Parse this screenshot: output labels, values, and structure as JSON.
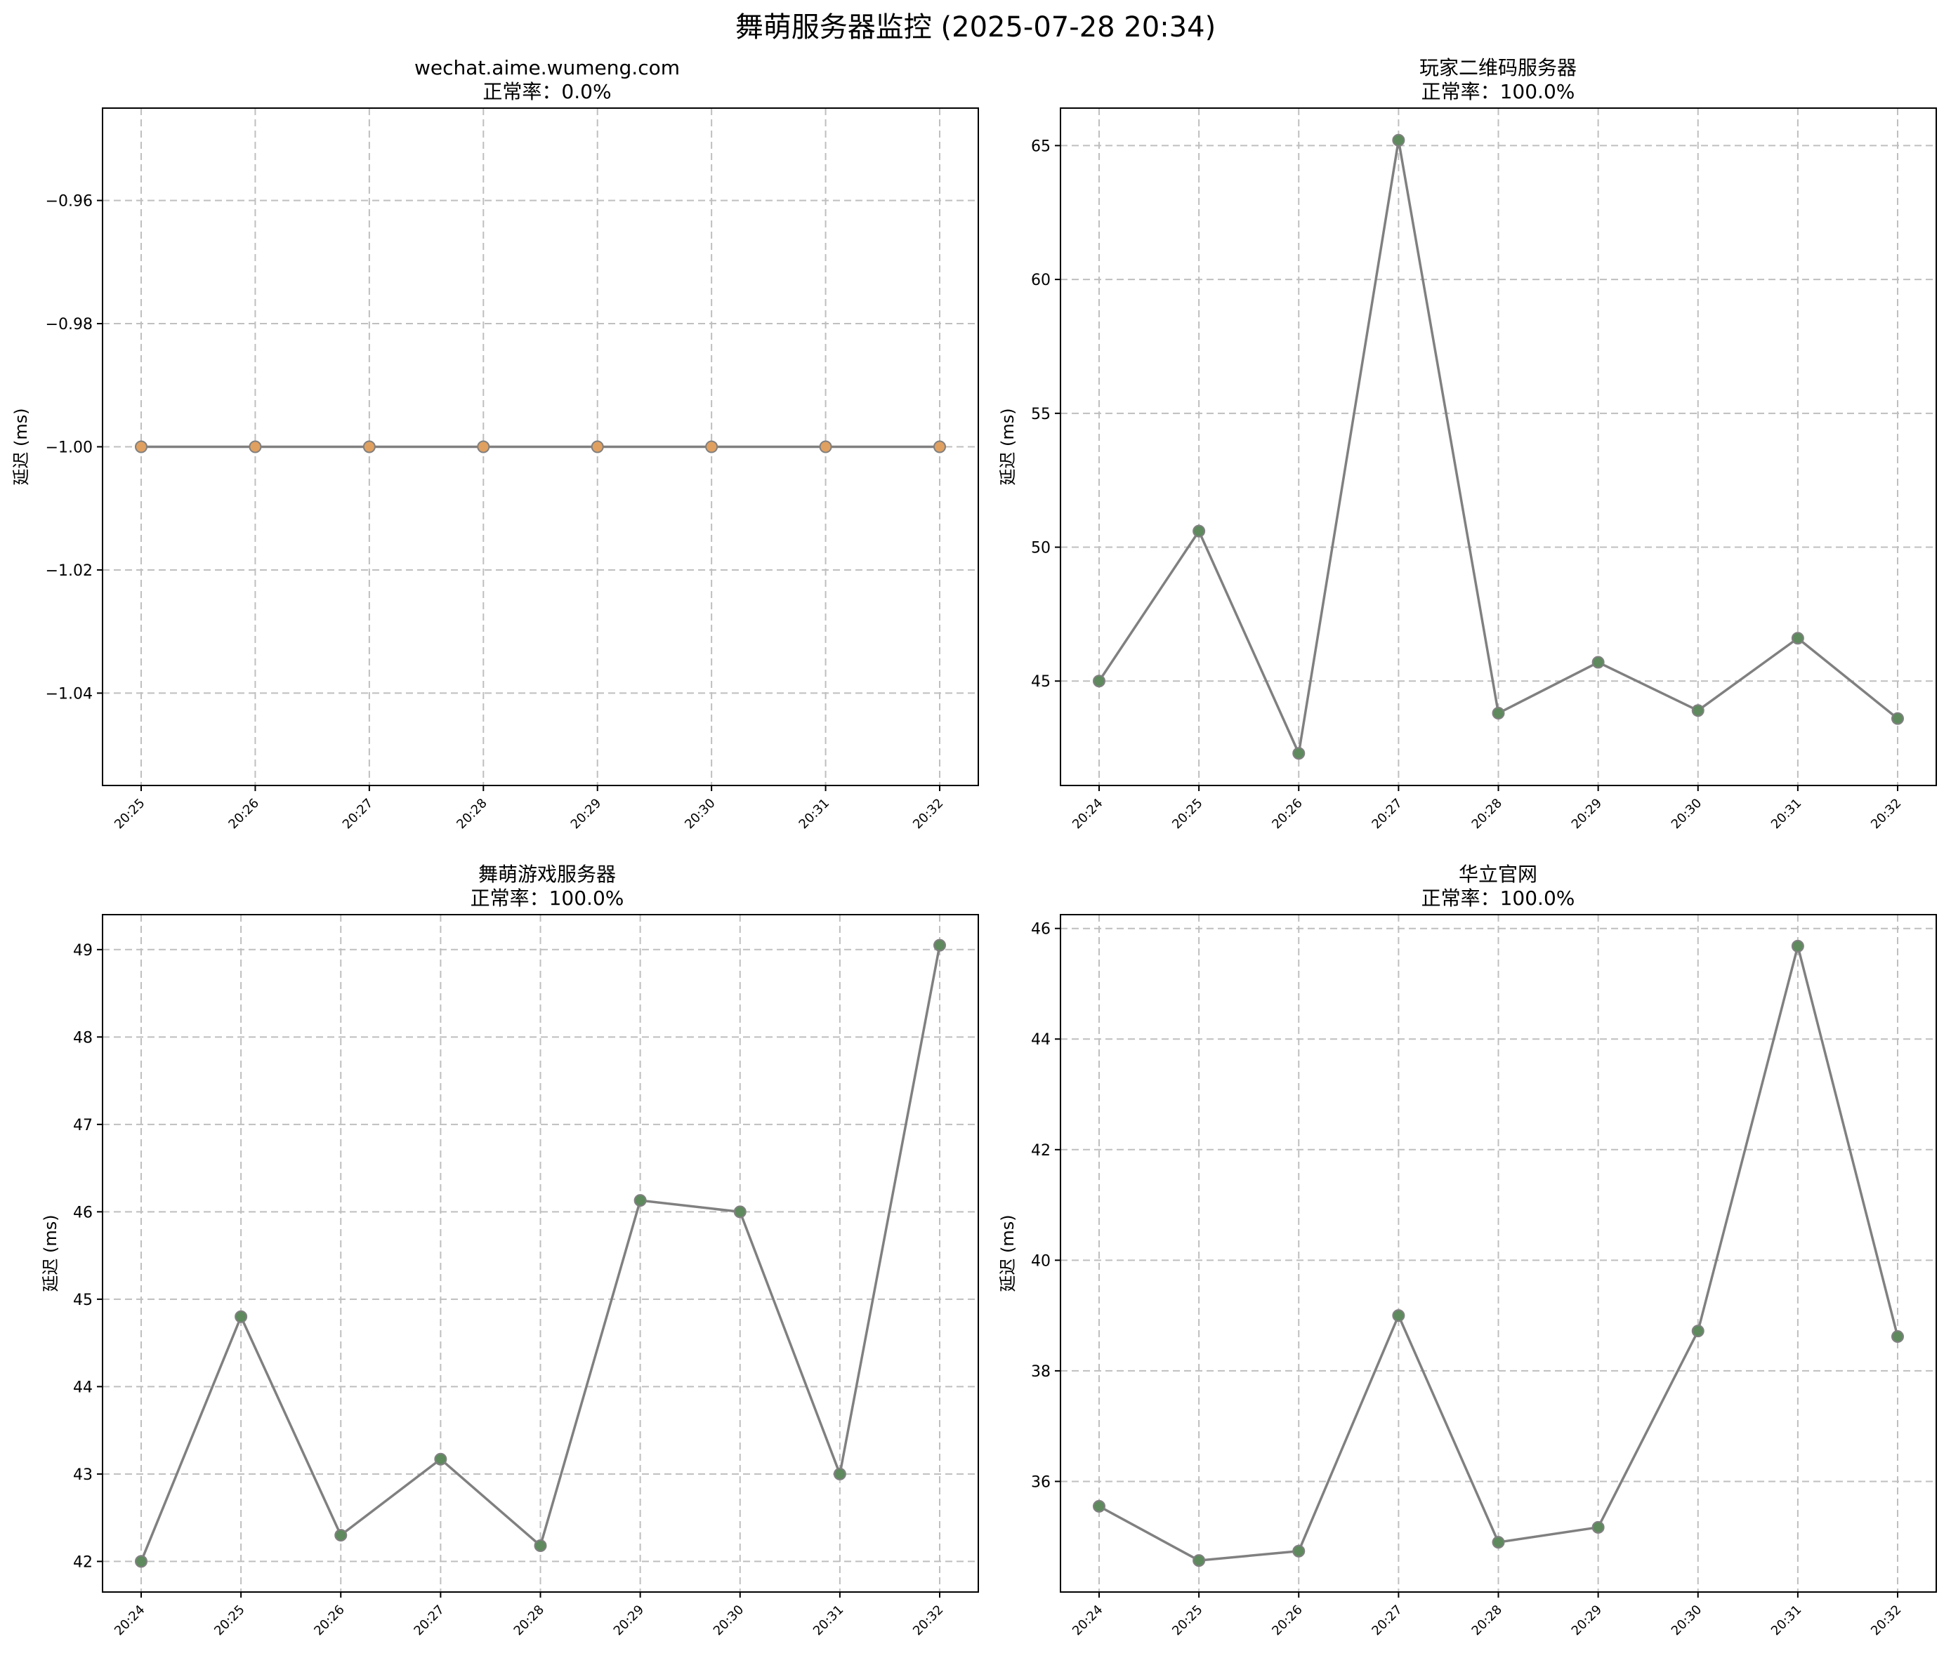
{
  "suptitle": "舞萌服务器监控 (2025-07-28 20:34)",
  "chart_data": [
    {
      "type": "line",
      "title": "wechat.aime.wumeng.com",
      "subtitle": "正常率：0.0%",
      "ylabel": "延迟 (ms)",
      "categories": [
        "20:25",
        "20:26",
        "20:27",
        "20:28",
        "20:29",
        "20:30",
        "20:31",
        "20:32"
      ],
      "values": [
        -1,
        -1,
        -1,
        -1,
        -1,
        -1,
        -1,
        -1
      ],
      "ylim": [
        -1.055,
        -0.945
      ],
      "yticks": [
        -0.96,
        -0.98,
        -1.0,
        -1.02,
        -1.04
      ],
      "ytick_labels": [
        "−0.96",
        "−0.98",
        "−1.00",
        "−1.02",
        "−1.04"
      ],
      "grid": true,
      "line_color": "#808080",
      "marker_color": "#e0a060"
    },
    {
      "type": "line",
      "title": "玩家二维码服务器",
      "subtitle": "正常率：100.0%",
      "ylabel": "延迟 (ms)",
      "categories": [
        "20:24",
        "20:25",
        "20:26",
        "20:27",
        "20:28",
        "20:29",
        "20:30",
        "20:31",
        "20:32"
      ],
      "values": [
        45.0,
        50.6,
        42.3,
        65.2,
        43.8,
        45.7,
        43.9,
        46.6,
        43.6
      ],
      "ylim": [
        41.1,
        66.4
      ],
      "yticks": [
        45,
        50,
        55,
        60,
        65
      ],
      "ytick_labels": [
        "45",
        "50",
        "55",
        "60",
        "65"
      ],
      "grid": true,
      "line_color": "#808080",
      "marker_color": "#5e8a5e"
    },
    {
      "type": "line",
      "title": "舞萌游戏服务器",
      "subtitle": "正常率：100.0%",
      "ylabel": "延迟 (ms)",
      "categories": [
        "20:24",
        "20:25",
        "20:26",
        "20:27",
        "20:28",
        "20:29",
        "20:30",
        "20:31",
        "20:32"
      ],
      "values": [
        42.0,
        44.8,
        42.3,
        43.17,
        42.18,
        46.13,
        46.0,
        43.0,
        49.05
      ],
      "ylim": [
        41.65,
        49.4
      ],
      "yticks": [
        42,
        43,
        44,
        45,
        46,
        47,
        48,
        49
      ],
      "ytick_labels": [
        "42",
        "43",
        "44",
        "45",
        "46",
        "47",
        "48",
        "49"
      ],
      "grid": true,
      "line_color": "#808080",
      "marker_color": "#5e8a5e"
    },
    {
      "type": "line",
      "title": "华立官网",
      "subtitle": "正常率：100.0%",
      "ylabel": "延迟 (ms)",
      "categories": [
        "20:24",
        "20:25",
        "20:26",
        "20:27",
        "20:28",
        "20:29",
        "20:30",
        "20:31",
        "20:32"
      ],
      "values": [
        35.55,
        34.57,
        34.74,
        39.0,
        34.9,
        35.17,
        38.72,
        45.68,
        38.62
      ],
      "ylim": [
        34.0,
        46.25
      ],
      "yticks": [
        36,
        38,
        40,
        42,
        44,
        46
      ],
      "ytick_labels": [
        "36",
        "38",
        "40",
        "42",
        "44",
        "46"
      ],
      "grid": true,
      "line_color": "#808080",
      "marker_color": "#5e8a5e"
    }
  ]
}
